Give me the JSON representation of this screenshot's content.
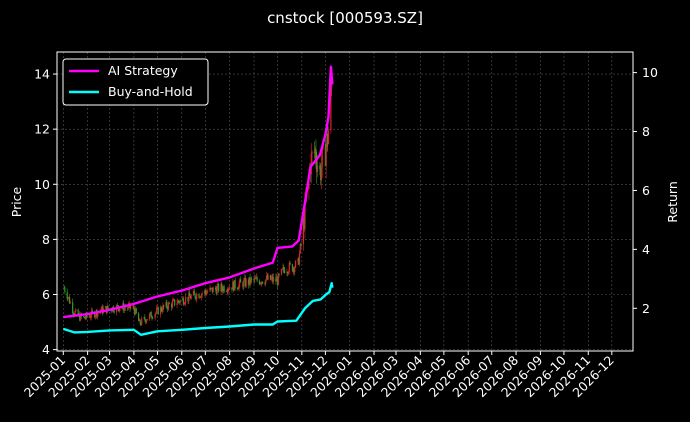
{
  "chart_data": {
    "type": "line",
    "title": "cnstock [000593.SZ]",
    "ylabel_left": "Price",
    "ylabel_right": "Return",
    "ylim_left": [
      3.95,
      14.8
    ],
    "ylim_right": [
      0.55,
      10.7
    ],
    "y_ticks_left": [
      "4",
      "6",
      "8",
      "10",
      "12",
      "14"
    ],
    "y_ticks_right": [
      "2",
      "4",
      "6",
      "8",
      "10"
    ],
    "x_range": [
      "2024-12-24",
      "2026-12-28"
    ],
    "x_ticks": [
      "2025-01",
      "2025-02",
      "2025-03",
      "2025-04",
      "2025-05",
      "2025-06",
      "2025-07",
      "2025-08",
      "2025-09",
      "2025-10",
      "2025-11",
      "2025-12",
      "2026-01",
      "2026-02",
      "2026-03",
      "2026-04",
      "2026-05",
      "2026-06",
      "2026-07",
      "2026-08",
      "2026-09",
      "2026-10",
      "2026-11",
      "2026-12"
    ],
    "grid": true,
    "legend_position": "top-left",
    "colors": {
      "up": "#d62728",
      "down": "#2ca02c",
      "strategy": "#ff00ff",
      "hold": "#00ffff",
      "grid": "#555555",
      "axes": "#ffffff",
      "background": "#000000"
    },
    "price_series": {
      "name": "Price",
      "points": [
        {
          "x": "2025-01-02",
          "y": 6.25
        },
        {
          "x": "2025-01-06",
          "y": 6.0
        },
        {
          "x": "2025-01-10",
          "y": 5.7
        },
        {
          "x": "2025-01-14",
          "y": 5.4
        },
        {
          "x": "2025-01-20",
          "y": 5.2
        },
        {
          "x": "2025-01-27",
          "y": 5.15
        },
        {
          "x": "2025-02-05",
          "y": 5.25
        },
        {
          "x": "2025-02-15",
          "y": 5.4
        },
        {
          "x": "2025-03-01",
          "y": 5.5
        },
        {
          "x": "2025-03-15",
          "y": 5.55
        },
        {
          "x": "2025-04-01",
          "y": 5.5
        },
        {
          "x": "2025-04-08",
          "y": 4.95
        },
        {
          "x": "2025-04-20",
          "y": 5.2
        },
        {
          "x": "2025-05-10",
          "y": 5.55
        },
        {
          "x": "2025-06-01",
          "y": 5.8
        },
        {
          "x": "2025-06-20",
          "y": 6.0
        },
        {
          "x": "2025-07-15",
          "y": 6.2
        },
        {
          "x": "2025-08-10",
          "y": 6.35
        },
        {
          "x": "2025-09-01",
          "y": 6.5
        },
        {
          "x": "2025-09-20",
          "y": 6.55
        },
        {
          "x": "2025-10-01",
          "y": 6.5
        },
        {
          "x": "2025-10-10",
          "y": 6.95
        },
        {
          "x": "2025-10-20",
          "y": 7.0
        },
        {
          "x": "2025-10-27",
          "y": 7.1
        },
        {
          "x": "2025-11-01",
          "y": 8.0
        },
        {
          "x": "2025-11-06",
          "y": 9.3
        },
        {
          "x": "2025-11-12",
          "y": 10.8
        },
        {
          "x": "2025-11-18",
          "y": 11.2
        },
        {
          "x": "2025-11-24",
          "y": 10.4
        },
        {
          "x": "2025-11-28",
          "y": 10.9
        },
        {
          "x": "2025-12-03",
          "y": 11.5
        },
        {
          "x": "2025-12-06",
          "y": 12.2
        },
        {
          "x": "2025-12-09",
          "y": 13.6
        }
      ]
    },
    "series": [
      {
        "name": "AI Strategy",
        "axis": "right",
        "points": [
          {
            "x": "2025-01-01",
            "y": 1.7
          },
          {
            "x": "2025-01-31",
            "y": 1.8
          },
          {
            "x": "2025-03-01",
            "y": 1.95
          },
          {
            "x": "2025-04-01",
            "y": 2.15
          },
          {
            "x": "2025-05-01",
            "y": 2.4
          },
          {
            "x": "2025-06-01",
            "y": 2.6
          },
          {
            "x": "2025-07-01",
            "y": 2.85
          },
          {
            "x": "2025-08-01",
            "y": 3.05
          },
          {
            "x": "2025-09-01",
            "y": 3.35
          },
          {
            "x": "2025-09-25",
            "y": 3.55
          },
          {
            "x": "2025-10-01",
            "y": 4.05
          },
          {
            "x": "2025-10-20",
            "y": 4.1
          },
          {
            "x": "2025-10-28",
            "y": 4.3
          },
          {
            "x": "2025-11-05",
            "y": 5.6
          },
          {
            "x": "2025-11-12",
            "y": 6.8
          },
          {
            "x": "2025-11-18",
            "y": 7.0
          },
          {
            "x": "2025-11-24",
            "y": 7.2
          },
          {
            "x": "2025-12-01",
            "y": 7.9
          },
          {
            "x": "2025-12-05",
            "y": 8.5
          },
          {
            "x": "2025-12-08",
            "y": 10.2
          },
          {
            "x": "2025-12-10",
            "y": 9.6
          }
        ]
      },
      {
        "name": "Buy-and-Hold",
        "axis": "right",
        "points": [
          {
            "x": "2025-01-01",
            "y": 1.3
          },
          {
            "x": "2025-01-15",
            "y": 1.18
          },
          {
            "x": "2025-02-01",
            "y": 1.2
          },
          {
            "x": "2025-03-01",
            "y": 1.25
          },
          {
            "x": "2025-04-01",
            "y": 1.27
          },
          {
            "x": "2025-04-10",
            "y": 1.1
          },
          {
            "x": "2025-05-01",
            "y": 1.22
          },
          {
            "x": "2025-06-01",
            "y": 1.27
          },
          {
            "x": "2025-07-01",
            "y": 1.33
          },
          {
            "x": "2025-08-01",
            "y": 1.38
          },
          {
            "x": "2025-09-01",
            "y": 1.45
          },
          {
            "x": "2025-09-25",
            "y": 1.45
          },
          {
            "x": "2025-10-01",
            "y": 1.55
          },
          {
            "x": "2025-10-25",
            "y": 1.58
          },
          {
            "x": "2025-11-05",
            "y": 2.0
          },
          {
            "x": "2025-11-15",
            "y": 2.25
          },
          {
            "x": "2025-11-25",
            "y": 2.3
          },
          {
            "x": "2025-12-01",
            "y": 2.45
          },
          {
            "x": "2025-12-06",
            "y": 2.55
          },
          {
            "x": "2025-12-09",
            "y": 2.85
          },
          {
            "x": "2025-12-10",
            "y": 2.7
          }
        ]
      }
    ]
  }
}
